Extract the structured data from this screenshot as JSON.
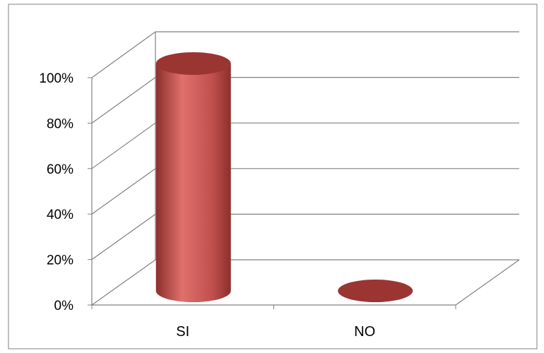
{
  "chart_data": {
    "type": "bar",
    "style": "3d-cylinder",
    "categories": [
      "SI",
      "NO"
    ],
    "values": [
      100,
      0
    ],
    "yticks": [
      "0%",
      "20%",
      "40%",
      "60%",
      "80%",
      "100%"
    ],
    "ylim": [
      0,
      100
    ],
    "grid": true,
    "legend": "none",
    "colors": {
      "bar_body": "#c0504d",
      "bar_highlight": "#e0706c",
      "bar_shadow": "#8c2f2c",
      "bar_top": "#9a3532",
      "gridline": "#808080",
      "border": "#808080"
    }
  }
}
